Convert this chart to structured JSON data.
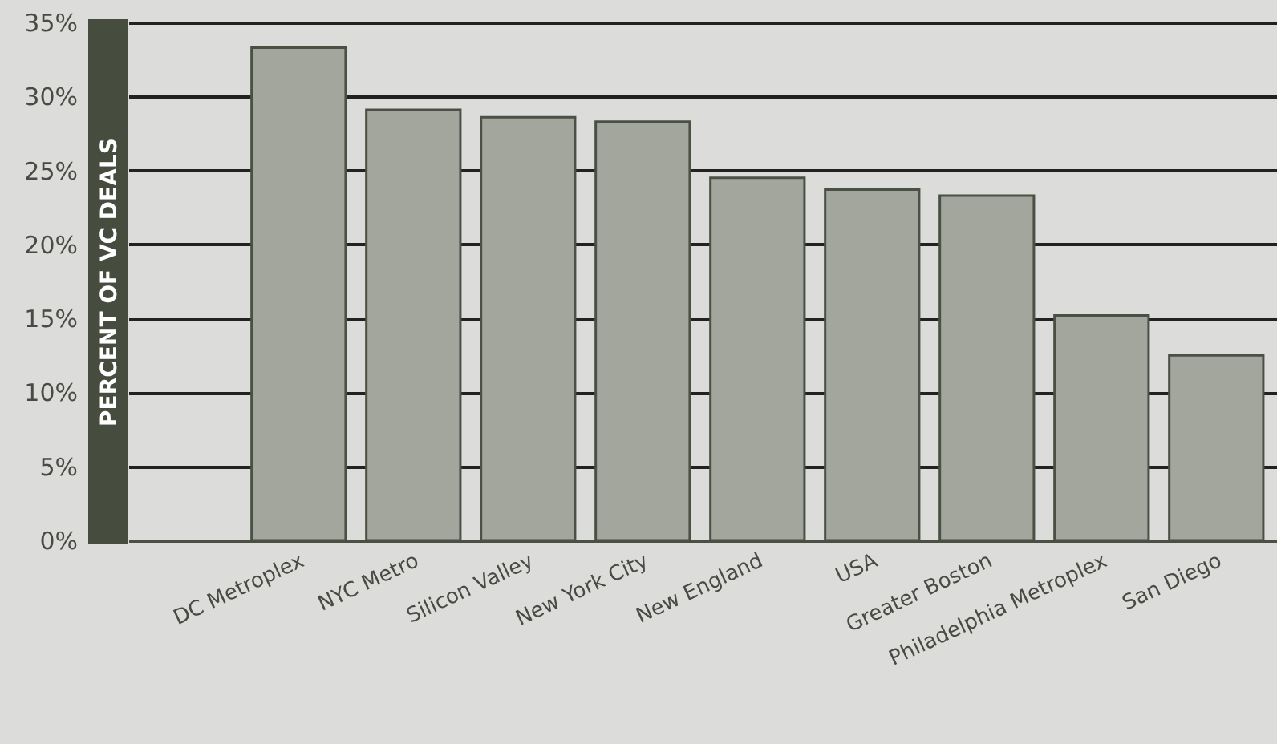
{
  "chart_data": {
    "type": "bar",
    "ylabel": "PERCENT OF VC DEALS",
    "categories": [
      "DC Metroplex",
      "NYC Metro",
      "Silicon Valley",
      "New York City",
      "New England",
      "USA",
      "Greater Boston",
      "Philadelphia Metroplex",
      "San Diego"
    ],
    "values": [
      33.3,
      29.1,
      28.6,
      28.3,
      24.5,
      23.7,
      23.3,
      15.2,
      12.5
    ],
    "color": "#a2a69d",
    "ylim": [
      0,
      35
    ],
    "yticks": [
      {
        "value": 0,
        "label": "0%"
      },
      {
        "value": 5,
        "label": "5%"
      },
      {
        "value": 10,
        "label": "10%"
      },
      {
        "value": 15,
        "label": "15%"
      },
      {
        "value": 20,
        "label": "20%"
      },
      {
        "value": 25,
        "label": "25%"
      },
      {
        "value": 30,
        "label": "30%"
      },
      {
        "value": 35,
        "label": "35%"
      }
    ],
    "grid": "y"
  }
}
